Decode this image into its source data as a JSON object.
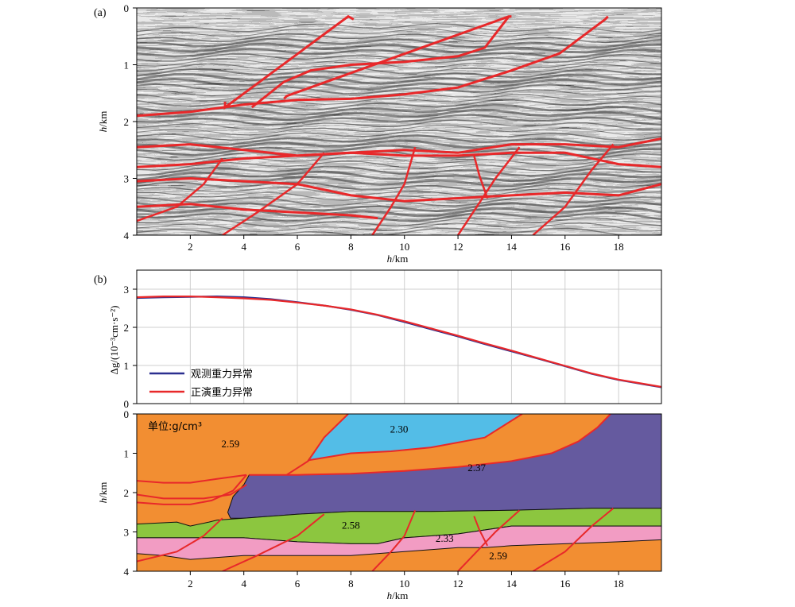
{
  "panel_a": {
    "label": "(a)",
    "x_label_italic": "h",
    "x_label_unit": "/km",
    "y_label_italic": "h",
    "y_label_unit": "/km"
  },
  "panel_b": {
    "label": "(b)",
    "legend_observed": "观测重力异常",
    "legend_forward": "正演重力异常",
    "y_label": "Δg/(10⁻³cm·s⁻²)",
    "unit_note": "单位:g/cm³",
    "x_label_italic": "h",
    "x_label_unit": "/km",
    "y_label_italic": "h",
    "y_label_unit": "/km"
  },
  "colors": {
    "observed": "#2b2f8f",
    "forward": "#e8282a",
    "fault": "#e8282a",
    "orange": "#f28e32",
    "blue": "#53bde7",
    "purple": "#655a9f",
    "green": "#8cc63f",
    "pink": "#f29cc3"
  },
  "chart_data": [
    {
      "type": "image",
      "title": "",
      "xlim": [
        0,
        19.6
      ],
      "ylim": [
        0,
        4
      ],
      "x_ticks": [
        2,
        4,
        6,
        8,
        10,
        12,
        14,
        16,
        18
      ],
      "y_ticks": [
        0,
        1,
        2,
        3,
        4
      ],
      "fault_lines": [
        [
          [
            3.3,
            1.65
          ],
          [
            3.3,
            1.75
          ],
          [
            7.9,
            0.15
          ],
          [
            8.1,
            0.2
          ]
        ],
        [
          [
            5.5,
            1.6
          ],
          [
            5.6,
            1.55
          ],
          [
            13.9,
            0.15
          ],
          [
            14.0,
            0.15
          ]
        ],
        [
          [
            0.0,
            1.9
          ],
          [
            2.0,
            1.83
          ],
          [
            4.0,
            1.7
          ],
          [
            6.0,
            1.62
          ],
          [
            8.0,
            1.6
          ],
          [
            10.0,
            1.52
          ],
          [
            12.0,
            1.4
          ],
          [
            14.0,
            1.1
          ],
          [
            15.8,
            0.8
          ],
          [
            17.5,
            0.2
          ],
          [
            17.6,
            0.15
          ]
        ],
        [
          [
            4.3,
            1.75
          ],
          [
            5.5,
            1.3
          ],
          [
            6.5,
            1.1
          ],
          [
            8.0,
            1.0
          ],
          [
            10.0,
            0.95
          ],
          [
            12.0,
            0.85
          ],
          [
            13.0,
            0.7
          ],
          [
            13.9,
            0.15
          ]
        ]
      ],
      "horizons": [
        [
          [
            0.0,
            2.45
          ],
          [
            2.0,
            2.4
          ],
          [
            4.0,
            2.5
          ],
          [
            6.0,
            2.6
          ],
          [
            8.0,
            2.55
          ],
          [
            10.0,
            2.5
          ],
          [
            12.0,
            2.55
          ],
          [
            14.0,
            2.4
          ],
          [
            16.0,
            2.4
          ],
          [
            18.0,
            2.45
          ],
          [
            19.6,
            2.3
          ]
        ],
        [
          [
            0.0,
            2.8
          ],
          [
            2.0,
            2.75
          ],
          [
            4.0,
            2.65
          ],
          [
            6.0,
            2.6
          ],
          [
            8.0,
            2.55
          ],
          [
            10.0,
            2.6
          ],
          [
            12.0,
            2.6
          ],
          [
            14.0,
            2.55
          ],
          [
            16.0,
            2.55
          ],
          [
            18.0,
            2.75
          ],
          [
            19.6,
            2.8
          ]
        ],
        [
          [
            0.0,
            3.05
          ],
          [
            2.0,
            3.0
          ],
          [
            4.0,
            3.05
          ],
          [
            6.0,
            3.1
          ],
          [
            8.0,
            3.3
          ],
          [
            10.0,
            3.4
          ],
          [
            12.0,
            3.35
          ],
          [
            14.0,
            3.3
          ],
          [
            16.0,
            3.25
          ],
          [
            18.0,
            3.3
          ],
          [
            19.6,
            3.1
          ]
        ],
        [
          [
            0.0,
            3.5
          ],
          [
            2.0,
            3.45
          ],
          [
            4.0,
            3.55
          ],
          [
            6.0,
            3.6
          ],
          [
            8.0,
            3.65
          ],
          [
            9.0,
            3.7
          ]
        ]
      ]
    },
    {
      "type": "line",
      "x": [
        0.0,
        1.0,
        2.0,
        3.0,
        4.0,
        5.0,
        6.0,
        7.0,
        8.0,
        9.0,
        10.0,
        11.0,
        12.0,
        13.0,
        14.0,
        15.0,
        16.0,
        17.0,
        18.0,
        19.0,
        19.6
      ],
      "series": [
        {
          "name": "观测重力异常",
          "values": [
            2.77,
            2.79,
            2.8,
            2.81,
            2.79,
            2.74,
            2.66,
            2.57,
            2.46,
            2.32,
            2.14,
            1.95,
            1.76,
            1.56,
            1.37,
            1.18,
            0.98,
            0.78,
            0.62,
            0.5,
            0.43
          ]
        },
        {
          "name": "正演重力异常",
          "values": [
            2.79,
            2.81,
            2.81,
            2.79,
            2.76,
            2.72,
            2.65,
            2.57,
            2.47,
            2.33,
            2.16,
            1.97,
            1.78,
            1.58,
            1.39,
            1.19,
            0.99,
            0.79,
            0.63,
            0.51,
            0.44
          ]
        }
      ],
      "xlabel": "",
      "ylabel": "Δg/(10⁻³cm·s⁻²)",
      "xlim": [
        0,
        19.6
      ],
      "ylim": [
        0,
        3.5
      ],
      "x_ticks": [
        2,
        4,
        6,
        8,
        10,
        12,
        14,
        16,
        18
      ],
      "y_ticks": [
        0,
        1,
        2,
        3
      ],
      "grid": true,
      "legend": "bottom-left"
    },
    {
      "type": "area",
      "xlim": [
        0,
        19.6
      ],
      "ylim": [
        0,
        4
      ],
      "x_ticks": [
        2,
        4,
        6,
        8,
        10,
        12,
        14,
        16,
        18
      ],
      "y_ticks": [
        0,
        1,
        2,
        3,
        4
      ],
      "layers": [
        {
          "density": "2.59",
          "color": "orange",
          "label_at": [
            3.5,
            0.75
          ],
          "top": [
            [
              0,
              0
            ],
            [
              19.6,
              0
            ]
          ],
          "bottom": [
            [
              0,
              4
            ],
            [
              19.6,
              4
            ]
          ]
        },
        {
          "density": "2.30",
          "color": "blue",
          "label_at": [
            9.8,
            0.37
          ],
          "polygon": [
            [
              7.9,
              0.0
            ],
            [
              14.4,
              0.0
            ],
            [
              13.0,
              0.6
            ],
            [
              11.0,
              0.85
            ],
            [
              9.5,
              0.95
            ],
            [
              8.0,
              1.0
            ],
            [
              6.4,
              1.18
            ],
            [
              7.0,
              0.6
            ]
          ]
        },
        {
          "density": "2.37",
          "color": "purple",
          "label_at": [
            12.7,
            1.35
          ],
          "polygon": [
            [
              17.7,
              0.0
            ],
            [
              19.6,
              0.0
            ],
            [
              19.6,
              2.4
            ],
            [
              17.0,
              2.4
            ],
            [
              14.0,
              2.45
            ],
            [
              11.0,
              2.48
            ],
            [
              8.0,
              2.48
            ],
            [
              6.0,
              2.55
            ],
            [
              4.0,
              2.65
            ],
            [
              3.5,
              2.65
            ],
            [
              3.4,
              2.5
            ],
            [
              3.6,
              2.1
            ],
            [
              4.0,
              1.8
            ],
            [
              4.2,
              1.55
            ],
            [
              6.0,
              1.55
            ],
            [
              8.0,
              1.52
            ],
            [
              10.0,
              1.45
            ],
            [
              12.0,
              1.35
            ],
            [
              14.0,
              1.2
            ],
            [
              15.5,
              1.0
            ],
            [
              16.5,
              0.7
            ],
            [
              17.2,
              0.35
            ]
          ]
        },
        {
          "density": "2.58",
          "color": "green",
          "label_at": [
            8.0,
            2.82
          ],
          "polygon": [
            [
              0,
              2.8
            ],
            [
              1.5,
              2.75
            ],
            [
              2.0,
              2.85
            ],
            [
              2.7,
              2.75
            ],
            [
              3.0,
              2.7
            ],
            [
              4.0,
              2.65
            ],
            [
              6.0,
              2.55
            ],
            [
              8.0,
              2.48
            ],
            [
              11.0,
              2.48
            ],
            [
              14.0,
              2.45
            ],
            [
              17.0,
              2.4
            ],
            [
              19.6,
              2.4
            ],
            [
              19.6,
              2.85
            ],
            [
              18.0,
              2.85
            ],
            [
              16.0,
              2.85
            ],
            [
              14.0,
              2.85
            ],
            [
              12.0,
              3.05
            ],
            [
              11.0,
              3.1
            ],
            [
              10.0,
              3.15
            ],
            [
              9.0,
              3.3
            ],
            [
              8.0,
              3.3
            ],
            [
              6.0,
              3.25
            ],
            [
              4.0,
              3.15
            ],
            [
              2.0,
              3.15
            ],
            [
              0,
              3.15
            ]
          ]
        },
        {
          "density": "2.33",
          "color": "pink",
          "label_at": [
            11.5,
            3.15
          ],
          "polygon": [
            [
              0,
              3.15
            ],
            [
              2.0,
              3.15
            ],
            [
              4.0,
              3.15
            ],
            [
              6.0,
              3.25
            ],
            [
              8.0,
              3.3
            ],
            [
              9.0,
              3.3
            ],
            [
              10.0,
              3.15
            ],
            [
              11.0,
              3.1
            ],
            [
              12.0,
              3.05
            ],
            [
              14.0,
              2.85
            ],
            [
              16.0,
              2.85
            ],
            [
              18.0,
              2.85
            ],
            [
              19.6,
              2.85
            ],
            [
              19.6,
              3.2
            ],
            [
              18.0,
              3.25
            ],
            [
              16.0,
              3.3
            ],
            [
              14.0,
              3.35
            ],
            [
              13.0,
              3.4
            ],
            [
              12.0,
              3.4
            ],
            [
              10.0,
              3.5
            ],
            [
              8.0,
              3.6
            ],
            [
              6.0,
              3.6
            ],
            [
              4.0,
              3.6
            ],
            [
              2.0,
              3.7
            ],
            [
              1.0,
              3.6
            ],
            [
              0,
              3.55
            ]
          ]
        },
        {
          "density": "2.59",
          "color": "orange",
          "label_at": [
            13.5,
            3.6
          ],
          "top": [],
          "bottom": []
        }
      ],
      "faults": [
        [
          [
            0.0,
            1.7
          ],
          [
            1.0,
            1.75
          ],
          [
            2.0,
            1.75
          ],
          [
            3.0,
            1.65
          ],
          [
            4.1,
            1.55
          ]
        ],
        [
          [
            0.0,
            2.25
          ],
          [
            1.0,
            2.3
          ],
          [
            2.0,
            2.3
          ],
          [
            2.8,
            2.2
          ],
          [
            3.6,
            1.95
          ],
          [
            4.1,
            1.55
          ]
        ],
        [
          [
            0.0,
            2.05
          ],
          [
            1.0,
            2.15
          ],
          [
            2.5,
            2.15
          ],
          [
            3.5,
            2.05
          ],
          [
            4.1,
            1.8
          ]
        ],
        [
          [
            5.6,
            1.55
          ],
          [
            6.4,
            1.2
          ],
          [
            7.0,
            0.6
          ],
          [
            7.9,
            0.0
          ]
        ],
        [
          [
            6.4,
            1.18
          ],
          [
            8.0,
            1.0
          ],
          [
            9.5,
            0.95
          ],
          [
            11.0,
            0.85
          ],
          [
            13.0,
            0.6
          ],
          [
            14.4,
            0.0
          ]
        ],
        [
          [
            17.7,
            0.0
          ],
          [
            17.2,
            0.35
          ],
          [
            16.5,
            0.7
          ],
          [
            15.5,
            1.0
          ],
          [
            14.0,
            1.2
          ],
          [
            12.0,
            1.35
          ],
          [
            10.0,
            1.45
          ],
          [
            8.0,
            1.52
          ],
          [
            6.0,
            1.55
          ],
          [
            4.2,
            1.55
          ]
        ],
        [
          [
            0.0,
            3.75
          ],
          [
            1.5,
            3.5
          ],
          [
            2.5,
            3.1
          ],
          [
            3.2,
            2.65
          ]
        ],
        [
          [
            3.2,
            4.0
          ],
          [
            4.5,
            3.6
          ],
          [
            6.0,
            3.1
          ],
          [
            7.0,
            2.55
          ]
        ],
        [
          [
            8.8,
            4.0
          ],
          [
            9.5,
            3.5
          ],
          [
            10.0,
            3.1
          ],
          [
            10.4,
            2.45
          ]
        ],
        [
          [
            12.0,
            4.0
          ],
          [
            12.7,
            3.5
          ],
          [
            13.4,
            3.0
          ],
          [
            14.3,
            2.45
          ]
        ],
        [
          [
            12.6,
            2.6
          ],
          [
            12.8,
            2.95
          ],
          [
            13.1,
            3.35
          ]
        ],
        [
          [
            14.8,
            4.0
          ],
          [
            16.0,
            3.5
          ],
          [
            17.0,
            2.85
          ],
          [
            17.8,
            2.4
          ]
        ]
      ],
      "xlabel": "",
      "ylabel": ""
    }
  ]
}
